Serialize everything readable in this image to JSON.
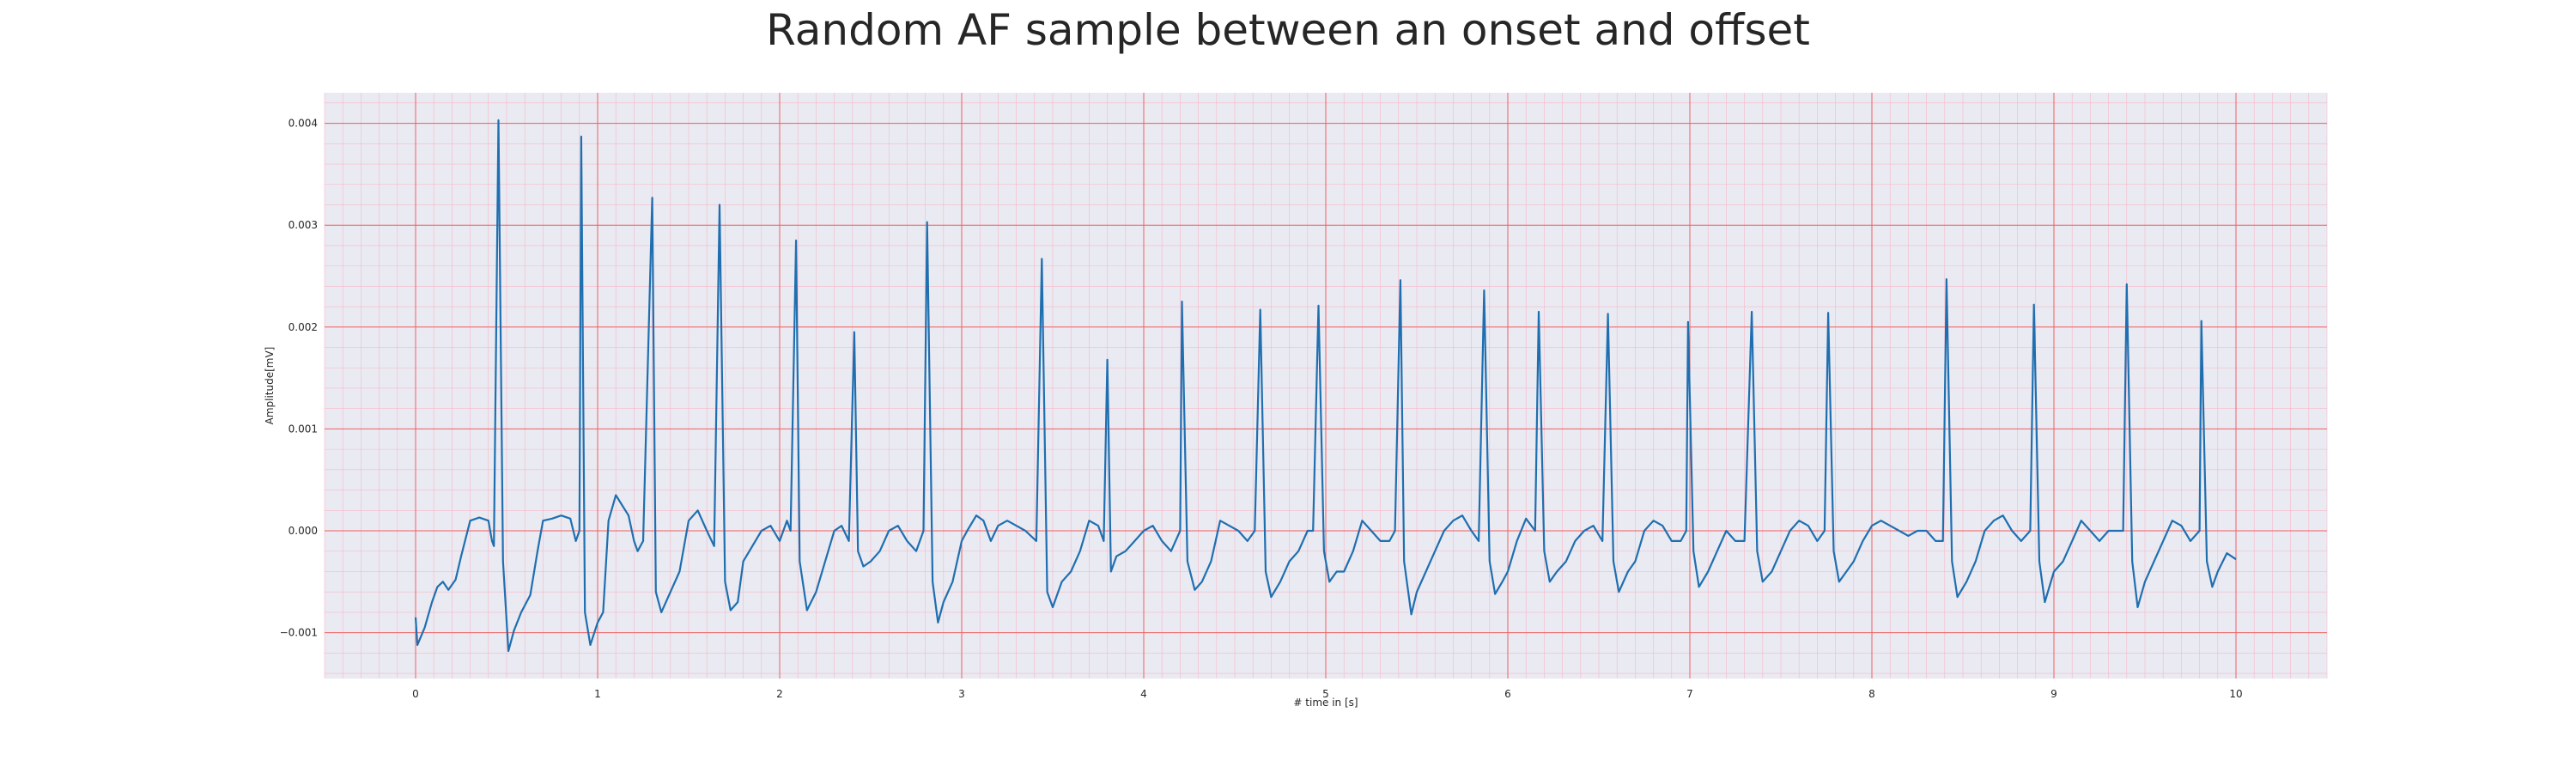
{
  "chart_data": {
    "type": "line",
    "title": "Random AF sample between an onset and offset",
    "xlabel": "# time in [s]",
    "ylabel": "Amplitude[mV]",
    "xlim": [
      -0.5,
      10.5
    ],
    "ylim": [
      -0.00145,
      0.0043
    ],
    "xticks": [
      0,
      1,
      2,
      3,
      4,
      5,
      6,
      7,
      8,
      9,
      10
    ],
    "xtick_labels": [
      "0",
      "1",
      "2",
      "3",
      "4",
      "5",
      "6",
      "7",
      "8",
      "9",
      "10"
    ],
    "yticks": [
      -0.001,
      0.0,
      0.001,
      0.002,
      0.003,
      0.004
    ],
    "ytick_labels": [
      "−0.001",
      "0.000",
      "0.001",
      "0.002",
      "0.003",
      "0.004"
    ],
    "grid": true,
    "background_color": "#eaeaf2",
    "major_grid_color": "#f06060",
    "minor_grid_color": "#f6b8c6",
    "line_color": "#1f6fb0",
    "series": [
      {
        "color": "#1f6fb0",
        "points": [
          [
            0.0,
            -0.00085
          ],
          [
            0.01,
            -0.00112
          ],
          [
            0.05,
            -0.00095
          ],
          [
            0.09,
            -0.0007
          ],
          [
            0.12,
            -0.00055
          ],
          [
            0.15,
            -0.0005
          ],
          [
            0.18,
            -0.00058
          ],
          [
            0.22,
            -0.00048
          ],
          [
            0.25,
            -0.00025
          ],
          [
            0.3,
            0.0001
          ],
          [
            0.35,
            0.00013
          ],
          [
            0.4,
            0.0001
          ],
          [
            0.42,
            -0.0001
          ],
          [
            0.43,
            -0.00015
          ],
          [
            0.455,
            0.00403
          ],
          [
            0.48,
            -0.0003
          ],
          [
            0.51,
            -0.00118
          ],
          [
            0.54,
            -0.00098
          ],
          [
            0.58,
            -0.0008
          ],
          [
            0.63,
            -0.00063
          ],
          [
            0.67,
            -0.0002
          ],
          [
            0.7,
            0.0001
          ],
          [
            0.75,
            0.00012
          ],
          [
            0.8,
            0.00015
          ],
          [
            0.85,
            0.00012
          ],
          [
            0.88,
            -0.0001
          ],
          [
            0.9,
            0.0
          ],
          [
            0.91,
            0.00387
          ],
          [
            0.93,
            -0.0008
          ],
          [
            0.96,
            -0.00112
          ],
          [
            1.0,
            -0.0009
          ],
          [
            1.03,
            -0.0008
          ],
          [
            1.06,
            0.0001
          ],
          [
            1.1,
            0.00035
          ],
          [
            1.17,
            0.00015
          ],
          [
            1.2,
            -0.0001
          ],
          [
            1.22,
            -0.0002
          ],
          [
            1.25,
            -0.0001
          ],
          [
            1.3,
            0.00327
          ],
          [
            1.32,
            -0.0006
          ],
          [
            1.35,
            -0.0008
          ],
          [
            1.4,
            -0.0006
          ],
          [
            1.45,
            -0.0004
          ],
          [
            1.5,
            0.0001
          ],
          [
            1.55,
            0.0002
          ],
          [
            1.6,
            0.0
          ],
          [
            1.64,
            -0.00015
          ],
          [
            1.67,
            0.0032
          ],
          [
            1.7,
            -0.0005
          ],
          [
            1.73,
            -0.00078
          ],
          [
            1.77,
            -0.0007
          ],
          [
            1.8,
            -0.0003
          ],
          [
            1.85,
            -0.00015
          ],
          [
            1.9,
            0.0
          ],
          [
            1.95,
            5e-05
          ],
          [
            2.0,
            -0.0001
          ],
          [
            2.04,
            0.0001
          ],
          [
            2.06,
            0.0
          ],
          [
            2.09,
            0.00285
          ],
          [
            2.11,
            -0.0003
          ],
          [
            2.15,
            -0.00078
          ],
          [
            2.2,
            -0.0006
          ],
          [
            2.25,
            -0.0003
          ],
          [
            2.3,
            0.0
          ],
          [
            2.34,
            5e-05
          ],
          [
            2.38,
            -0.0001
          ],
          [
            2.41,
            0.00195
          ],
          [
            2.43,
            -0.0002
          ],
          [
            2.46,
            -0.00035
          ],
          [
            2.5,
            -0.0003
          ],
          [
            2.55,
            -0.0002
          ],
          [
            2.6,
            0.0
          ],
          [
            2.65,
            5e-05
          ],
          [
            2.7,
            -0.0001
          ],
          [
            2.75,
            -0.0002
          ],
          [
            2.79,
            0.0
          ],
          [
            2.81,
            0.00303
          ],
          [
            2.84,
            -0.0005
          ],
          [
            2.87,
            -0.0009
          ],
          [
            2.9,
            -0.0007
          ],
          [
            2.95,
            -0.0005
          ],
          [
            3.0,
            -0.0001
          ],
          [
            3.03,
            0.0
          ],
          [
            3.08,
            0.00015
          ],
          [
            3.12,
            0.0001
          ],
          [
            3.16,
            -0.0001
          ],
          [
            3.2,
            5e-05
          ],
          [
            3.25,
            0.0001
          ],
          [
            3.3,
            5e-05
          ],
          [
            3.35,
            0.0
          ],
          [
            3.41,
            -0.0001
          ],
          [
            3.44,
            0.00267
          ],
          [
            3.47,
            -0.0006
          ],
          [
            3.5,
            -0.00075
          ],
          [
            3.55,
            -0.0005
          ],
          [
            3.6,
            -0.0004
          ],
          [
            3.65,
            -0.0002
          ],
          [
            3.7,
            0.0001
          ],
          [
            3.75,
            5e-05
          ],
          [
            3.78,
            -0.0001
          ],
          [
            3.8,
            0.00168
          ],
          [
            3.82,
            -0.0004
          ],
          [
            3.85,
            -0.00025
          ],
          [
            3.9,
            -0.0002
          ],
          [
            3.95,
            -0.0001
          ],
          [
            4.0,
            0.0
          ],
          [
            4.05,
            5e-05
          ],
          [
            4.1,
            -0.0001
          ],
          [
            4.15,
            -0.0002
          ],
          [
            4.2,
            0.0
          ],
          [
            4.21,
            0.00225
          ],
          [
            4.24,
            -0.0003
          ],
          [
            4.28,
            -0.00058
          ],
          [
            4.32,
            -0.0005
          ],
          [
            4.37,
            -0.0003
          ],
          [
            4.42,
            0.0001
          ],
          [
            4.47,
            5e-05
          ],
          [
            4.52,
            0.0
          ],
          [
            4.57,
            -0.0001
          ],
          [
            4.61,
            0.0
          ],
          [
            4.64,
            0.00217
          ],
          [
            4.67,
            -0.0004
          ],
          [
            4.7,
            -0.00065
          ],
          [
            4.75,
            -0.0005
          ],
          [
            4.8,
            -0.0003
          ],
          [
            4.85,
            -0.0002
          ],
          [
            4.9,
            0.0
          ],
          [
            4.93,
            0.0
          ],
          [
            4.96,
            0.00221
          ],
          [
            4.99,
            -0.0002
          ],
          [
            5.02,
            -0.0005
          ],
          [
            5.06,
            -0.0004
          ],
          [
            5.1,
            -0.0004
          ],
          [
            5.15,
            -0.0002
          ],
          [
            5.2,
            0.0001
          ],
          [
            5.25,
            0.0
          ],
          [
            5.3,
            -0.0001
          ],
          [
            5.35,
            -0.0001
          ],
          [
            5.38,
            0.0
          ],
          [
            5.41,
            0.00246
          ],
          [
            5.43,
            -0.0003
          ],
          [
            5.47,
            -0.00082
          ],
          [
            5.5,
            -0.0006
          ],
          [
            5.55,
            -0.0004
          ],
          [
            5.6,
            -0.0002
          ],
          [
            5.65,
            0.0
          ],
          [
            5.7,
            0.0001
          ],
          [
            5.75,
            0.00015
          ],
          [
            5.8,
            0.0
          ],
          [
            5.84,
            -0.0001
          ],
          [
            5.87,
            0.00236
          ],
          [
            5.9,
            -0.0003
          ],
          [
            5.93,
            -0.00062
          ],
          [
            5.97,
            -0.0005
          ],
          [
            6.0,
            -0.0004
          ],
          [
            6.05,
            -0.0001
          ],
          [
            6.1,
            0.00012
          ],
          [
            6.15,
            0.0
          ],
          [
            6.17,
            0.00215
          ],
          [
            6.2,
            -0.0002
          ],
          [
            6.23,
            -0.0005
          ],
          [
            6.27,
            -0.0004
          ],
          [
            6.32,
            -0.0003
          ],
          [
            6.37,
            -0.0001
          ],
          [
            6.42,
            0.0
          ],
          [
            6.47,
            5e-05
          ],
          [
            6.52,
            -0.0001
          ],
          [
            6.55,
            0.00213
          ],
          [
            6.58,
            -0.0003
          ],
          [
            6.61,
            -0.0006
          ],
          [
            6.66,
            -0.0004
          ],
          [
            6.7,
            -0.0003
          ],
          [
            6.75,
            0.0
          ],
          [
            6.8,
            0.0001
          ],
          [
            6.85,
            5e-05
          ],
          [
            6.9,
            -0.0001
          ],
          [
            6.95,
            -0.0001
          ],
          [
            6.98,
            0.0
          ],
          [
            6.99,
            0.00205
          ],
          [
            7.02,
            -0.0002
          ],
          [
            7.05,
            -0.00055
          ],
          [
            7.1,
            -0.0004
          ],
          [
            7.15,
            -0.0002
          ],
          [
            7.2,
            0.0
          ],
          [
            7.25,
            -0.0001
          ],
          [
            7.3,
            -0.0001
          ],
          [
            7.34,
            0.00215
          ],
          [
            7.37,
            -0.0002
          ],
          [
            7.4,
            -0.0005
          ],
          [
            7.45,
            -0.0004
          ],
          [
            7.5,
            -0.0002
          ],
          [
            7.55,
            0.0
          ],
          [
            7.6,
            0.0001
          ],
          [
            7.65,
            5e-05
          ],
          [
            7.7,
            -0.0001
          ],
          [
            7.74,
            0.0
          ],
          [
            7.76,
            0.00214
          ],
          [
            7.79,
            -0.0002
          ],
          [
            7.82,
            -0.0005
          ],
          [
            7.86,
            -0.0004
          ],
          [
            7.9,
            -0.0003
          ],
          [
            7.95,
            -0.0001
          ],
          [
            8.0,
            5e-05
          ],
          [
            8.05,
            0.0001
          ],
          [
            8.1,
            5e-05
          ],
          [
            8.15,
            0.0
          ],
          [
            8.2,
            -5e-05
          ],
          [
            8.25,
            0.0
          ],
          [
            8.3,
            0.0
          ],
          [
            8.35,
            -0.0001
          ],
          [
            8.39,
            -0.0001
          ],
          [
            8.41,
            0.00247
          ],
          [
            8.44,
            -0.0003
          ],
          [
            8.47,
            -0.00065
          ],
          [
            8.52,
            -0.0005
          ],
          [
            8.57,
            -0.0003
          ],
          [
            8.62,
            0.0
          ],
          [
            8.67,
            0.0001
          ],
          [
            8.72,
            0.00015
          ],
          [
            8.77,
            0.0
          ],
          [
            8.82,
            -0.0001
          ],
          [
            8.87,
            0.0
          ],
          [
            8.89,
            0.00222
          ],
          [
            8.92,
            -0.0003
          ],
          [
            8.95,
            -0.0007
          ],
          [
            9.0,
            -0.0004
          ],
          [
            9.05,
            -0.0003
          ],
          [
            9.1,
            -0.0001
          ],
          [
            9.15,
            0.0001
          ],
          [
            9.2,
            0.0
          ],
          [
            9.25,
            -0.0001
          ],
          [
            9.3,
            0.0
          ],
          [
            9.35,
            0.0
          ],
          [
            9.38,
            0.0
          ],
          [
            9.4,
            0.00242
          ],
          [
            9.43,
            -0.0003
          ],
          [
            9.46,
            -0.00075
          ],
          [
            9.5,
            -0.0005
          ],
          [
            9.55,
            -0.0003
          ],
          [
            9.6,
            -0.0001
          ],
          [
            9.65,
            0.0001
          ],
          [
            9.7,
            5e-05
          ],
          [
            9.75,
            -0.0001
          ],
          [
            9.8,
            0.0
          ],
          [
            9.81,
            0.00206
          ],
          [
            9.84,
            -0.0003
          ],
          [
            9.87,
            -0.00055
          ],
          [
            9.9,
            -0.0004
          ],
          [
            9.95,
            -0.00022
          ],
          [
            10.0,
            -0.00028
          ]
        ]
      }
    ]
  }
}
